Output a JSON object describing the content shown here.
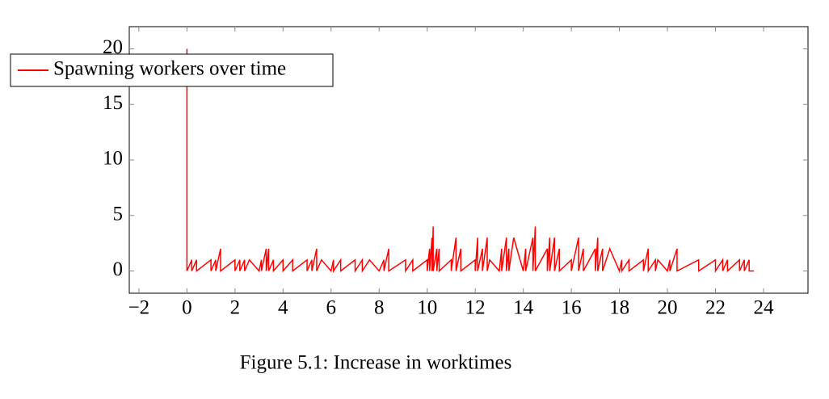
{
  "chart_data": {
    "type": "line",
    "title": "Figure 5.1: Increase in worktimes",
    "xlim": [
      -2.4,
      25.85
    ],
    "ylim": [
      -2,
      22
    ],
    "xticks": [
      {
        "value": -2,
        "label": "−2"
      },
      0,
      2,
      4,
      6,
      8,
      10,
      12,
      14,
      16,
      18,
      20,
      22,
      24
    ],
    "yticks": [
      0,
      5,
      10,
      15,
      20
    ],
    "x": [
      0,
      0,
      0.2,
      0.2,
      0.4,
      0.4,
      1,
      1,
      1.2,
      1.2,
      1.4,
      1.4,
      2,
      2,
      2.2,
      2.2,
      2.4,
      2.4,
      2.6,
      3,
      3.1,
      3.1,
      3.3,
      3.3,
      3.4,
      3.4,
      3.6,
      3.6,
      4,
      4,
      4.4,
      4.4,
      5,
      5,
      5.2,
      5.2,
      5.4,
      5.4,
      5.6,
      6,
      6.1,
      6.1,
      6.4,
      6.4,
      7,
      7,
      7.3,
      7.3,
      7.6,
      8,
      8.2,
      8.2,
      8.4,
      8.4,
      9.1,
      9.1,
      9.4,
      9.4,
      10,
      10,
      10.1,
      10.1,
      10.2,
      10.2,
      10.25,
      10.25,
      10.4,
      10.4,
      10.5,
      10.5,
      11,
      11,
      11.2,
      11.2,
      11.4,
      11.4,
      12,
      12,
      12.1,
      12.1,
      12.3,
      12.3,
      12.5,
      12.5,
      12.6,
      13,
      13.1,
      13.1,
      13.3,
      13.3,
      13.4,
      13.4,
      13.6,
      14,
      14.1,
      14.1,
      14.4,
      14.4,
      14.5,
      14.5,
      15,
      15,
      15.1,
      15.1,
      15.3,
      15.3,
      15.5,
      15.5,
      16,
      16,
      16.3,
      16.3,
      16.5,
      16.5,
      17,
      17,
      17.1,
      17.1,
      17.3,
      17.3,
      17.6,
      18,
      18.1,
      18.1,
      18.4,
      18.4,
      19,
      19,
      19.2,
      19.2,
      19.5,
      19.5,
      19.6,
      20,
      20.1,
      20.1,
      20.4,
      20.4,
      21.3,
      21.3,
      22,
      22,
      22.3,
      22.3,
      22.5,
      22.5,
      23,
      23,
      23.2,
      23.2,
      23.4,
      23.4,
      23.6
    ],
    "series": [
      {
        "name": "Spawning workers over time",
        "color": "#ff0000",
        "values": [
          20,
          0,
          1,
          0,
          1,
          0,
          1,
          0,
          1,
          0,
          2,
          0,
          1,
          0,
          1,
          0,
          1,
          0,
          1,
          0,
          1,
          0,
          2,
          0,
          2,
          0,
          1,
          0,
          1,
          0,
          1,
          0,
          1,
          0,
          1,
          0,
          2,
          0,
          1,
          0,
          1,
          0,
          1,
          0,
          1,
          0,
          1,
          0,
          1,
          0,
          1,
          0,
          2,
          0,
          1,
          0,
          1,
          0,
          1,
          0,
          2,
          0,
          3,
          0,
          4,
          0,
          2,
          0,
          2,
          0,
          1,
          0,
          3,
          0,
          2,
          0,
          1,
          0,
          3,
          0,
          2,
          0,
          3,
          0,
          1,
          0,
          2,
          0,
          3,
          0,
          2,
          0,
          3,
          0,
          2,
          0,
          3,
          0,
          4,
          0,
          2,
          0,
          3,
          0,
          3,
          0,
          2,
          0,
          1,
          0,
          3,
          0,
          2,
          0,
          2,
          0,
          3,
          0,
          2,
          0,
          2,
          0,
          1,
          0,
          1,
          0,
          1,
          0,
          2,
          0,
          1,
          0,
          1,
          0,
          1,
          0,
          2,
          0,
          1,
          0,
          1,
          0,
          1,
          0,
          1,
          0,
          1,
          0,
          1,
          0,
          1,
          0,
          0
        ]
      }
    ]
  }
}
